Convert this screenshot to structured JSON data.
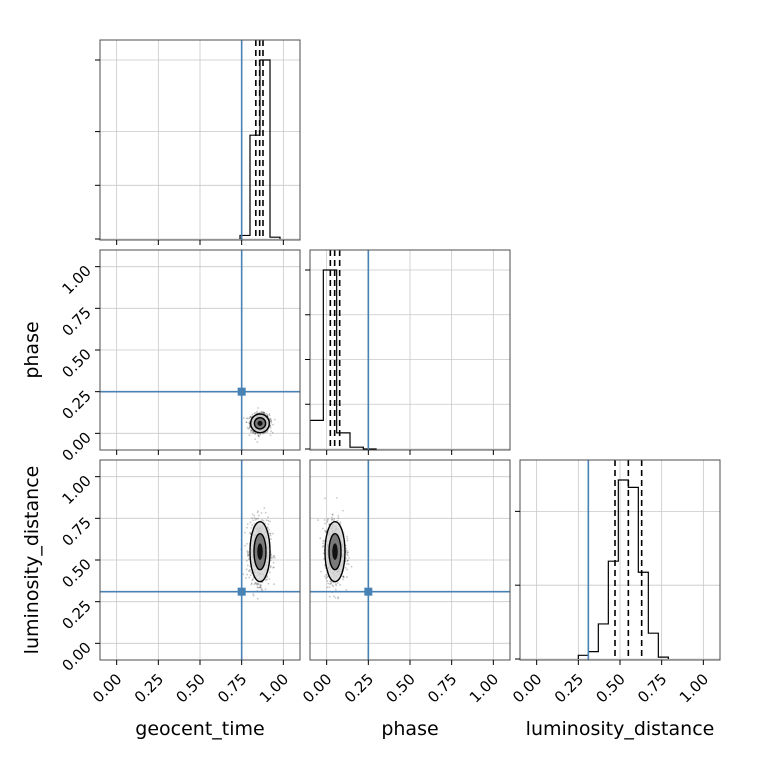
{
  "chart_data": {
    "type": "corner",
    "parameters": [
      "geocent_time",
      "phase",
      "luminosity_distance"
    ],
    "range": [
      -0.1,
      1.1
    ],
    "ticks": [
      "0.00",
      "0.25",
      "0.50",
      "0.75",
      "1.00"
    ],
    "tick_values": [
      0,
      0.25,
      0.5,
      0.75,
      1.0
    ],
    "truth_color": "#4682b4",
    "truths": {
      "geocent_time": 0.75,
      "phase": 0.25,
      "luminosity_distance": 0.31
    },
    "grid": true,
    "marginals": [
      {
        "parameter": "geocent_time",
        "bins": [
          0.74,
          0.8,
          0.86,
          0.92,
          0.98
        ],
        "counts": [
          0.02,
          0.58,
          1.0,
          0.01
        ],
        "quantiles": [
          0.835,
          0.858,
          0.878
        ]
      },
      {
        "parameter": "phase",
        "bins": [
          -0.1,
          -0.02,
          0.06,
          0.14,
          0.22,
          0.3
        ],
        "counts": [
          0.16,
          1.0,
          0.09,
          0.01,
          0.0
        ],
        "quantiles": [
          0.022,
          0.048,
          0.078
        ]
      },
      {
        "parameter": "luminosity_distance",
        "bins": [
          0.25,
          0.31,
          0.37,
          0.43,
          0.49,
          0.55,
          0.61,
          0.67,
          0.73,
          0.79
        ],
        "counts": [
          0.02,
          0.04,
          0.19,
          0.53,
          0.97,
          0.93,
          0.47,
          0.14,
          0.01
        ],
        "quantiles": [
          0.47,
          0.55,
          0.63
        ]
      }
    ],
    "joint": [
      {
        "x": "geocent_time",
        "y": "phase",
        "center": [
          0.86,
          0.06
        ],
        "spread": [
          0.028,
          0.028
        ]
      },
      {
        "x": "geocent_time",
        "y": "luminosity_distance",
        "center": [
          0.86,
          0.55
        ],
        "spread": [
          0.03,
          0.09
        ]
      },
      {
        "x": "phase",
        "y": "luminosity_distance",
        "center": [
          0.05,
          0.55
        ],
        "spread": [
          0.03,
          0.09
        ]
      }
    ]
  }
}
